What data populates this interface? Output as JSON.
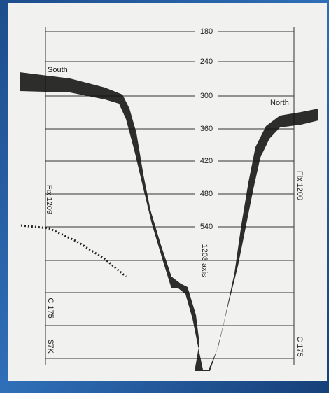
{
  "depth_labels": [
    "180",
    "240",
    "300",
    "360",
    "420",
    "480",
    "540"
  ],
  "labels": {
    "south": "South",
    "north": "North",
    "fix_left": "Fix 1209",
    "fix_right": "Fix 1200",
    "axis": "1203  axis",
    "c_left": "C 175",
    "mark_left": "$7K",
    "c_right": "C 175"
  }
}
